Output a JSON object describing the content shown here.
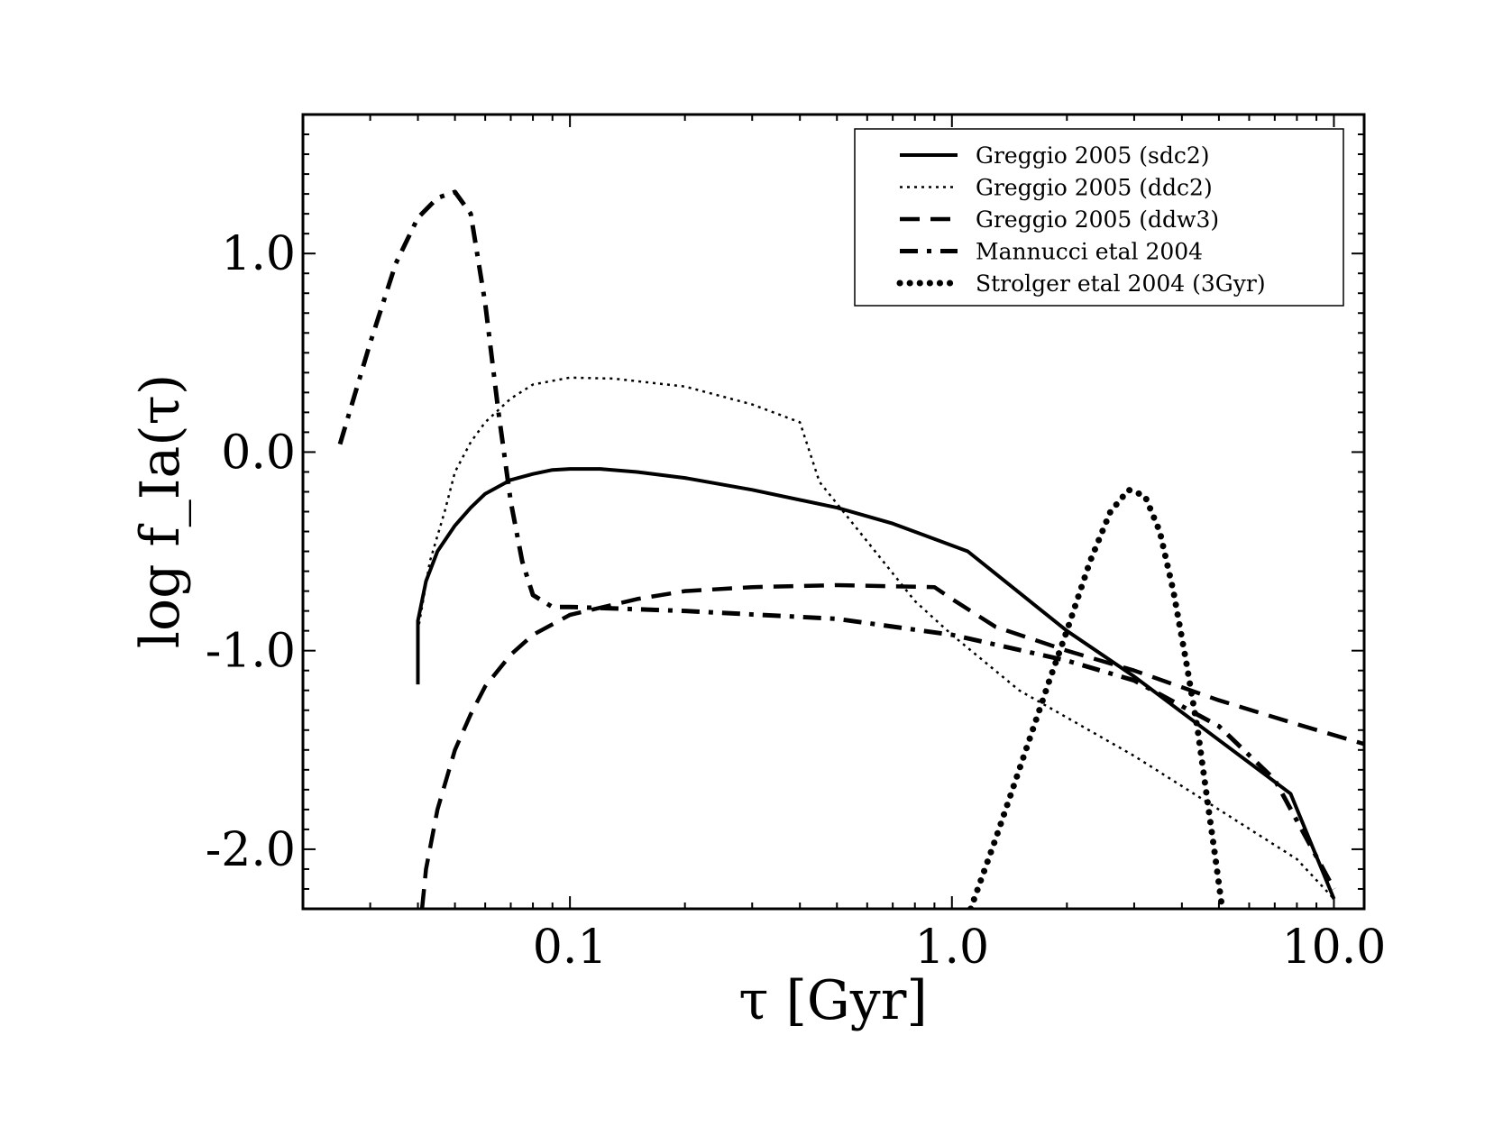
{
  "chart_data": {
    "type": "line",
    "xlabel": "τ [Gyr]",
    "ylabel": "log f_Ia(τ)",
    "x_scale": "log",
    "xlim": [
      0.02,
      12.0
    ],
    "ylim": [
      -2.3,
      1.7
    ],
    "x_ticks": [
      {
        "value": 0.1,
        "label": "0.1"
      },
      {
        "value": 1.0,
        "label": "1.0"
      },
      {
        "value": 10.0,
        "label": "10.0"
      }
    ],
    "y_ticks": [
      {
        "value": 1.0,
        "label": "1.0"
      },
      {
        "value": 0.0,
        "label": "0.0"
      },
      {
        "value": -1.0,
        "label": "-1.0"
      },
      {
        "value": -2.0,
        "label": "-2.0"
      }
    ],
    "grid": false,
    "legend_position": "top-right",
    "series": [
      {
        "name": "Greggio 2005 (sdc2)",
        "style": "solid",
        "points": [
          [
            0.04,
            -1.17
          ],
          [
            0.04,
            -0.85
          ],
          [
            0.042,
            -0.65
          ],
          [
            0.045,
            -0.5
          ],
          [
            0.05,
            -0.37
          ],
          [
            0.055,
            -0.28
          ],
          [
            0.06,
            -0.21
          ],
          [
            0.07,
            -0.14
          ],
          [
            0.08,
            -0.11
          ],
          [
            0.09,
            -0.09
          ],
          [
            0.1,
            -0.085
          ],
          [
            0.12,
            -0.085
          ],
          [
            0.15,
            -0.1
          ],
          [
            0.2,
            -0.13
          ],
          [
            0.3,
            -0.19
          ],
          [
            0.5,
            -0.28
          ],
          [
            0.7,
            -0.36
          ],
          [
            1.1,
            -0.5
          ],
          [
            2.0,
            -0.9
          ],
          [
            3.0,
            -1.13
          ],
          [
            5.0,
            -1.45
          ],
          [
            7.7,
            -1.72
          ],
          [
            10.0,
            -2.25
          ]
        ]
      },
      {
        "name": "Greggio 2005 (ddc2)",
        "style": "dotted",
        "points": [
          [
            0.04,
            -1.12
          ],
          [
            0.04,
            -0.9
          ],
          [
            0.043,
            -0.55
          ],
          [
            0.047,
            -0.3
          ],
          [
            0.05,
            -0.1
          ],
          [
            0.055,
            0.05
          ],
          [
            0.06,
            0.15
          ],
          [
            0.07,
            0.27
          ],
          [
            0.08,
            0.34
          ],
          [
            0.1,
            0.375
          ],
          [
            0.13,
            0.37
          ],
          [
            0.2,
            0.33
          ],
          [
            0.3,
            0.24
          ],
          [
            0.4,
            0.15
          ],
          [
            0.45,
            -0.15
          ],
          [
            0.6,
            -0.45
          ],
          [
            0.8,
            -0.75
          ],
          [
            1.0,
            -0.92
          ],
          [
            1.5,
            -1.2
          ],
          [
            3.0,
            -1.53
          ],
          [
            5.0,
            -1.8
          ],
          [
            8.0,
            -2.05
          ],
          [
            10.0,
            -2.25
          ]
        ]
      },
      {
        "name": "Greggio 2005 (ddw3)",
        "style": "dashed",
        "points": [
          [
            0.041,
            -2.3
          ],
          [
            0.042,
            -2.1
          ],
          [
            0.045,
            -1.8
          ],
          [
            0.05,
            -1.5
          ],
          [
            0.055,
            -1.32
          ],
          [
            0.06,
            -1.18
          ],
          [
            0.07,
            -1.02
          ],
          [
            0.08,
            -0.92
          ],
          [
            0.1,
            -0.82
          ],
          [
            0.15,
            -0.74
          ],
          [
            0.2,
            -0.7
          ],
          [
            0.3,
            -0.68
          ],
          [
            0.5,
            -0.67
          ],
          [
            0.9,
            -0.68
          ],
          [
            1.0,
            -0.74
          ],
          [
            1.3,
            -0.88
          ],
          [
            2.0,
            -1.0
          ],
          [
            3.0,
            -1.1
          ],
          [
            5.0,
            -1.25
          ],
          [
            8.0,
            -1.37
          ],
          [
            12.0,
            -1.47
          ]
        ]
      },
      {
        "name": "Mannucci etal 2004",
        "style": "dashdot",
        "points": [
          [
            0.025,
            0.04
          ],
          [
            0.03,
            0.55
          ],
          [
            0.035,
            0.95
          ],
          [
            0.04,
            1.18
          ],
          [
            0.045,
            1.28
          ],
          [
            0.05,
            1.31
          ],
          [
            0.055,
            1.2
          ],
          [
            0.06,
            0.75
          ],
          [
            0.065,
            0.2
          ],
          [
            0.07,
            -0.25
          ],
          [
            0.075,
            -0.55
          ],
          [
            0.08,
            -0.72
          ],
          [
            0.09,
            -0.78
          ],
          [
            0.1,
            -0.78
          ],
          [
            0.2,
            -0.8
          ],
          [
            0.5,
            -0.84
          ],
          [
            1.0,
            -0.92
          ],
          [
            2.0,
            -1.05
          ],
          [
            3.0,
            -1.15
          ],
          [
            5.0,
            -1.38
          ],
          [
            7.0,
            -1.65
          ],
          [
            10.0,
            -2.2
          ]
        ]
      },
      {
        "name": "Strolger etal 2004 (3Gyr)",
        "style": "dots",
        "points": [
          [
            1.12,
            -2.3
          ],
          [
            1.3,
            -1.95
          ],
          [
            1.5,
            -1.6
          ],
          [
            1.8,
            -1.15
          ],
          [
            2.0,
            -0.9
          ],
          [
            2.3,
            -0.55
          ],
          [
            2.6,
            -0.3
          ],
          [
            2.9,
            -0.19
          ],
          [
            3.2,
            -0.22
          ],
          [
            3.5,
            -0.4
          ],
          [
            3.8,
            -0.7
          ],
          [
            4.1,
            -1.05
          ],
          [
            4.4,
            -1.4
          ],
          [
            4.7,
            -1.8
          ],
          [
            4.9,
            -2.05
          ],
          [
            5.1,
            -2.3
          ]
        ]
      }
    ]
  }
}
